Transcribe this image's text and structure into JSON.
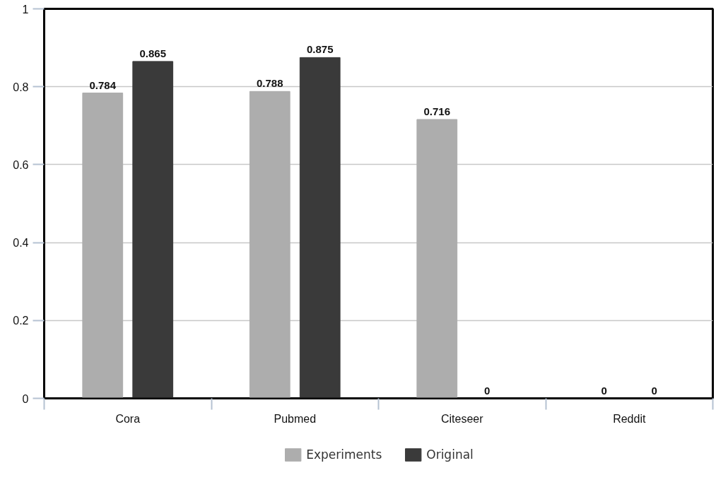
{
  "chart_data": {
    "type": "bar",
    "categories": [
      "Cora",
      "Pubmed",
      "Citeseer",
      "Reddit"
    ],
    "series": [
      {
        "name": "Experiments",
        "color": "#adadad",
        "values": [
          0.784,
          0.788,
          0.716,
          0
        ]
      },
      {
        "name": "Original",
        "color": "#3a3a3a",
        "values": [
          0.865,
          0.875,
          0,
          0
        ]
      }
    ],
    "ylim": [
      0,
      1
    ],
    "yticks": [
      0,
      0.2,
      0.4,
      0.6,
      0.8,
      1
    ],
    "grid": "y",
    "legend": "bottom",
    "data_labels": true
  }
}
